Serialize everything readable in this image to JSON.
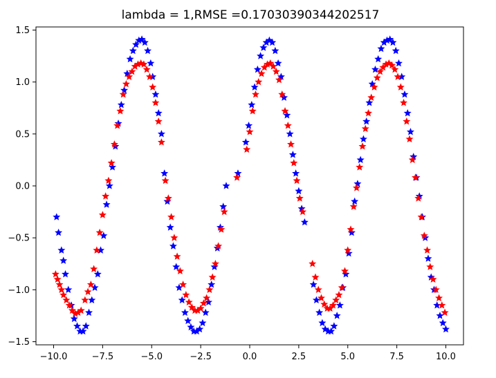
{
  "chart_data": {
    "type": "scatter",
    "title": "lambda = 1,RMSE =0.17030390344202517",
    "xlabel": "",
    "ylabel": "",
    "xlim": [
      -10.9,
      10.9
    ],
    "ylim": [
      -1.53,
      1.53
    ],
    "x_ticks": [
      -10.0,
      -7.5,
      -5.0,
      -2.5,
      0.0,
      2.5,
      5.0,
      7.5,
      10.0
    ],
    "x_tick_labels": [
      "−10.0",
      "−7.5",
      "−5.0",
      "−2.5",
      "0.0",
      "2.5",
      "5.0",
      "7.5",
      "10.0"
    ],
    "y_ticks": [
      -1.5,
      -1.0,
      -0.5,
      0.0,
      0.5,
      1.0,
      1.5
    ],
    "y_tick_labels": [
      "−1.5",
      "−1.0",
      "−0.5",
      "0.0",
      "0.5",
      "1.0",
      "1.5"
    ],
    "grid": false,
    "legend": "none",
    "marker": "star",
    "series": [
      {
        "color": "#0000ff",
        "points": [
          [
            -9.85,
            -0.3
          ],
          [
            -9.75,
            -0.45
          ],
          [
            -9.6,
            -0.62
          ],
          [
            -9.5,
            -0.72
          ],
          [
            -9.4,
            -0.85
          ],
          [
            -9.25,
            -1.0
          ],
          [
            -9.1,
            -1.15
          ],
          [
            -8.95,
            -1.28
          ],
          [
            -8.8,
            -1.35
          ],
          [
            -8.65,
            -1.4
          ],
          [
            -8.5,
            -1.4
          ],
          [
            -8.35,
            -1.35
          ],
          [
            -8.2,
            -1.22
          ],
          [
            -8.05,
            -1.1
          ],
          [
            -7.9,
            -0.98
          ],
          [
            -7.75,
            -0.85
          ],
          [
            -7.6,
            -0.62
          ],
          [
            -7.45,
            -0.48
          ],
          [
            -7.3,
            -0.18
          ],
          [
            -7.15,
            0.0
          ],
          [
            -7.0,
            0.18
          ],
          [
            -6.85,
            0.38
          ],
          [
            -6.7,
            0.6
          ],
          [
            -6.55,
            0.78
          ],
          [
            -6.4,
            0.92
          ],
          [
            -6.25,
            1.08
          ],
          [
            -6.1,
            1.22
          ],
          [
            -5.95,
            1.3
          ],
          [
            -5.8,
            1.36
          ],
          [
            -5.65,
            1.4
          ],
          [
            -5.5,
            1.41
          ],
          [
            -5.35,
            1.38
          ],
          [
            -5.2,
            1.3
          ],
          [
            -5.05,
            1.18
          ],
          [
            -4.95,
            1.05
          ],
          [
            -4.8,
            0.88
          ],
          [
            -4.65,
            0.7
          ],
          [
            -4.5,
            0.5
          ],
          [
            -4.35,
            0.12
          ],
          [
            -4.2,
            -0.15
          ],
          [
            -4.05,
            -0.4
          ],
          [
            -3.9,
            -0.58
          ],
          [
            -3.75,
            -0.78
          ],
          [
            -3.6,
            -0.98
          ],
          [
            -3.45,
            -1.1
          ],
          [
            -3.3,
            -1.22
          ],
          [
            -3.15,
            -1.3
          ],
          [
            -3.0,
            -1.36
          ],
          [
            -2.85,
            -1.4
          ],
          [
            -2.7,
            -1.4
          ],
          [
            -2.55,
            -1.38
          ],
          [
            -2.4,
            -1.32
          ],
          [
            -2.25,
            -1.22
          ],
          [
            -2.1,
            -1.12
          ],
          [
            -1.95,
            -0.95
          ],
          [
            -1.8,
            -0.78
          ],
          [
            -1.65,
            -0.6
          ],
          [
            -1.5,
            -0.4
          ],
          [
            -1.35,
            -0.2
          ],
          [
            -1.2,
            0.0
          ],
          [
            -0.6,
            0.12
          ],
          [
            -0.2,
            0.42
          ],
          [
            -0.05,
            0.58
          ],
          [
            0.1,
            0.78
          ],
          [
            0.25,
            0.95
          ],
          [
            0.4,
            1.12
          ],
          [
            0.55,
            1.25
          ],
          [
            0.7,
            1.33
          ],
          [
            0.85,
            1.38
          ],
          [
            1.0,
            1.4
          ],
          [
            1.15,
            1.38
          ],
          [
            1.3,
            1.3
          ],
          [
            1.45,
            1.18
          ],
          [
            1.6,
            1.05
          ],
          [
            1.75,
            0.85
          ],
          [
            1.9,
            0.68
          ],
          [
            2.05,
            0.5
          ],
          [
            2.2,
            0.3
          ],
          [
            2.35,
            0.12
          ],
          [
            2.5,
            -0.05
          ],
          [
            2.65,
            -0.22
          ],
          [
            2.8,
            -0.35
          ],
          [
            3.25,
            -0.95
          ],
          [
            3.4,
            -1.1
          ],
          [
            3.55,
            -1.22
          ],
          [
            3.7,
            -1.32
          ],
          [
            3.85,
            -1.38
          ],
          [
            4.0,
            -1.4
          ],
          [
            4.15,
            -1.4
          ],
          [
            4.3,
            -1.35
          ],
          [
            4.45,
            -1.25
          ],
          [
            4.6,
            -1.15
          ],
          [
            4.75,
            -0.98
          ],
          [
            4.9,
            -0.85
          ],
          [
            5.05,
            -0.65
          ],
          [
            5.2,
            -0.45
          ],
          [
            5.35,
            -0.15
          ],
          [
            5.5,
            0.02
          ],
          [
            5.65,
            0.25
          ],
          [
            5.8,
            0.45
          ],
          [
            5.95,
            0.62
          ],
          [
            6.1,
            0.8
          ],
          [
            6.25,
            0.98
          ],
          [
            6.4,
            1.12
          ],
          [
            6.55,
            1.22
          ],
          [
            6.7,
            1.32
          ],
          [
            6.85,
            1.38
          ],
          [
            7.0,
            1.4
          ],
          [
            7.15,
            1.41
          ],
          [
            7.3,
            1.38
          ],
          [
            7.45,
            1.3
          ],
          [
            7.6,
            1.18
          ],
          [
            7.75,
            1.05
          ],
          [
            7.9,
            0.88
          ],
          [
            8.05,
            0.7
          ],
          [
            8.2,
            0.52
          ],
          [
            8.35,
            0.28
          ],
          [
            8.5,
            0.08
          ],
          [
            8.65,
            -0.1
          ],
          [
            8.8,
            -0.3
          ],
          [
            8.95,
            -0.5
          ],
          [
            9.1,
            -0.7
          ],
          [
            9.25,
            -0.88
          ],
          [
            9.4,
            -1.0
          ],
          [
            9.55,
            -1.15
          ],
          [
            9.7,
            -1.25
          ],
          [
            9.85,
            -1.32
          ],
          [
            10.0,
            -1.38
          ]
        ]
      },
      {
        "color": "#ff0000",
        "points": [
          [
            -9.9,
            -0.85
          ],
          [
            -9.8,
            -0.9
          ],
          [
            -9.7,
            -0.95
          ],
          [
            -9.6,
            -1.0
          ],
          [
            -9.5,
            -1.05
          ],
          [
            -9.35,
            -1.1
          ],
          [
            -9.2,
            -1.15
          ],
          [
            -9.05,
            -1.2
          ],
          [
            -8.9,
            -1.23
          ],
          [
            -8.75,
            -1.22
          ],
          [
            -8.6,
            -1.2
          ],
          [
            -8.4,
            -1.1
          ],
          [
            -8.25,
            -1.02
          ],
          [
            -8.1,
            -0.95
          ],
          [
            -7.95,
            -0.8
          ],
          [
            -7.8,
            -0.62
          ],
          [
            -7.65,
            -0.45
          ],
          [
            -7.5,
            -0.28
          ],
          [
            -7.35,
            -0.1
          ],
          [
            -7.2,
            0.05
          ],
          [
            -7.05,
            0.22
          ],
          [
            -6.9,
            0.4
          ],
          [
            -6.75,
            0.58
          ],
          [
            -6.6,
            0.72
          ],
          [
            -6.45,
            0.88
          ],
          [
            -6.3,
            0.98
          ],
          [
            -6.15,
            1.05
          ],
          [
            -6.0,
            1.1
          ],
          [
            -5.85,
            1.15
          ],
          [
            -5.7,
            1.17
          ],
          [
            -5.55,
            1.18
          ],
          [
            -5.4,
            1.17
          ],
          [
            -5.25,
            1.12
          ],
          [
            -5.1,
            1.05
          ],
          [
            -4.95,
            0.95
          ],
          [
            -4.8,
            0.8
          ],
          [
            -4.65,
            0.62
          ],
          [
            -4.5,
            0.42
          ],
          [
            -4.3,
            0.05
          ],
          [
            -4.15,
            -0.12
          ],
          [
            -4.0,
            -0.3
          ],
          [
            -3.85,
            -0.5
          ],
          [
            -3.7,
            -0.68
          ],
          [
            -3.55,
            -0.82
          ],
          [
            -3.4,
            -0.95
          ],
          [
            -3.25,
            -1.05
          ],
          [
            -3.1,
            -1.12
          ],
          [
            -2.95,
            -1.17
          ],
          [
            -2.8,
            -1.2
          ],
          [
            -2.65,
            -1.2
          ],
          [
            -2.5,
            -1.18
          ],
          [
            -2.35,
            -1.13
          ],
          [
            -2.2,
            -1.08
          ],
          [
            -2.05,
            -1.0
          ],
          [
            -1.9,
            -0.88
          ],
          [
            -1.75,
            -0.75
          ],
          [
            -1.6,
            -0.58
          ],
          [
            -1.45,
            -0.42
          ],
          [
            -1.3,
            -0.25
          ],
          [
            -0.65,
            0.08
          ],
          [
            -0.15,
            0.35
          ],
          [
            0.0,
            0.52
          ],
          [
            0.15,
            0.72
          ],
          [
            0.3,
            0.88
          ],
          [
            0.45,
            1.0
          ],
          [
            0.6,
            1.08
          ],
          [
            0.75,
            1.14
          ],
          [
            0.9,
            1.17
          ],
          [
            1.05,
            1.18
          ],
          [
            1.2,
            1.15
          ],
          [
            1.35,
            1.1
          ],
          [
            1.5,
            1.02
          ],
          [
            1.65,
            0.88
          ],
          [
            1.8,
            0.72
          ],
          [
            1.95,
            0.58
          ],
          [
            2.1,
            0.4
          ],
          [
            2.25,
            0.22
          ],
          [
            2.4,
            0.05
          ],
          [
            2.55,
            -0.12
          ],
          [
            2.7,
            -0.25
          ],
          [
            3.2,
            -0.75
          ],
          [
            3.35,
            -0.88
          ],
          [
            3.5,
            -1.0
          ],
          [
            3.65,
            -1.08
          ],
          [
            3.8,
            -1.14
          ],
          [
            3.95,
            -1.18
          ],
          [
            4.1,
            -1.18
          ],
          [
            4.25,
            -1.15
          ],
          [
            4.4,
            -1.1
          ],
          [
            4.55,
            -1.05
          ],
          [
            4.7,
            -0.98
          ],
          [
            4.85,
            -0.82
          ],
          [
            5.0,
            -0.62
          ],
          [
            5.15,
            -0.42
          ],
          [
            5.3,
            -0.2
          ],
          [
            5.45,
            -0.02
          ],
          [
            5.6,
            0.18
          ],
          [
            5.75,
            0.38
          ],
          [
            5.9,
            0.55
          ],
          [
            6.05,
            0.7
          ],
          [
            6.2,
            0.85
          ],
          [
            6.35,
            0.95
          ],
          [
            6.5,
            1.04
          ],
          [
            6.65,
            1.1
          ],
          [
            6.8,
            1.14
          ],
          [
            6.95,
            1.17
          ],
          [
            7.1,
            1.18
          ],
          [
            7.25,
            1.16
          ],
          [
            7.4,
            1.12
          ],
          [
            7.55,
            1.05
          ],
          [
            7.7,
            0.95
          ],
          [
            7.85,
            0.8
          ],
          [
            8.0,
            0.62
          ],
          [
            8.15,
            0.45
          ],
          [
            8.3,
            0.25
          ],
          [
            8.45,
            0.08
          ],
          [
            8.6,
            -0.12
          ],
          [
            8.75,
            -0.3
          ],
          [
            8.9,
            -0.48
          ],
          [
            9.05,
            -0.62
          ],
          [
            9.2,
            -0.78
          ],
          [
            9.35,
            -0.9
          ],
          [
            9.5,
            -1.0
          ],
          [
            9.65,
            -1.08
          ],
          [
            9.8,
            -1.15
          ],
          [
            9.95,
            -1.22
          ]
        ]
      }
    ]
  }
}
